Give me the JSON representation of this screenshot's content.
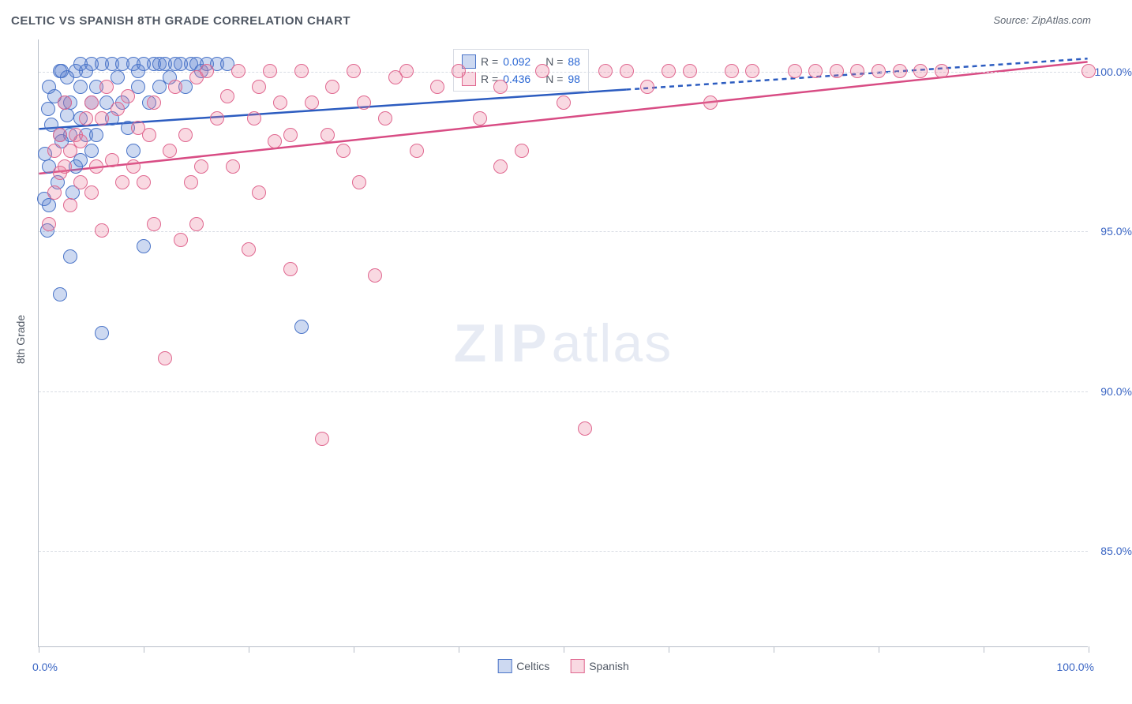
{
  "title": "CELTIC VS SPANISH 8TH GRADE CORRELATION CHART",
  "source": "Source: ZipAtlas.com",
  "yaxis_title": "8th Grade",
  "watermark_bold": "ZIP",
  "watermark_light": "atlas",
  "chart": {
    "type": "scatter",
    "x_domain": [
      0,
      100
    ],
    "y_domain": [
      82,
      101
    ],
    "x_min_label": "0.0%",
    "x_max_label": "100.0%",
    "y_ticks": [
      85,
      90,
      95,
      100
    ],
    "y_tick_labels": [
      "85.0%",
      "90.0%",
      "95.0%",
      "100.0%"
    ],
    "x_ticks": [
      0,
      10,
      20,
      30,
      40,
      50,
      60,
      70,
      80,
      90,
      100
    ],
    "grid_color": "#d8dce4",
    "axis_color": "#b8bec8",
    "marker_radius": 9,
    "marker_border_width": 1.5,
    "series": [
      {
        "name": "Celtics",
        "fill": "rgba(90,130,210,0.30)",
        "stroke": "#4a74c8",
        "R": "0.092",
        "N": "88",
        "trend": {
          "y_at_x0": 98.2,
          "y_at_x100": 100.4,
          "color": "#2c5cc0",
          "width": 2.5,
          "dash_after_x": 56
        },
        "points": [
          [
            0.5,
            96.0
          ],
          [
            0.8,
            95.0
          ],
          [
            1.0,
            97.0
          ],
          [
            1.0,
            99.5
          ],
          [
            2.0,
            98.0
          ],
          [
            2.0,
            100.0
          ],
          [
            2.0,
            93.0
          ],
          [
            2.5,
            99.0
          ],
          [
            3.0,
            98.0
          ],
          [
            3.0,
            94.2
          ],
          [
            3.0,
            99.0
          ],
          [
            3.5,
            97.0
          ],
          [
            3.5,
            100.0
          ],
          [
            4.0,
            99.5
          ],
          [
            4.0,
            98.5
          ],
          [
            4.0,
            100.2
          ],
          [
            4.0,
            97.2
          ],
          [
            4.5,
            100.0
          ],
          [
            4.5,
            98.0
          ],
          [
            5.0,
            99.0
          ],
          [
            5.0,
            100.2
          ],
          [
            5.0,
            97.5
          ],
          [
            5.5,
            99.5
          ],
          [
            5.5,
            98.0
          ],
          [
            6.0,
            100.2
          ],
          [
            6.0,
            91.8
          ],
          [
            6.5,
            99.0
          ],
          [
            7.0,
            100.2
          ],
          [
            7.0,
            98.5
          ],
          [
            7.5,
            99.8
          ],
          [
            8.0,
            100.2
          ],
          [
            8.0,
            99.0
          ],
          [
            8.5,
            98.2
          ],
          [
            9.0,
            100.2
          ],
          [
            9.0,
            97.5
          ],
          [
            9.5,
            99.5
          ],
          [
            9.5,
            100.0
          ],
          [
            10.0,
            100.2
          ],
          [
            10.0,
            94.5
          ],
          [
            10.5,
            99.0
          ],
          [
            11.0,
            100.2
          ],
          [
            11.5,
            99.5
          ],
          [
            11.5,
            100.2
          ],
          [
            12.0,
            100.2
          ],
          [
            12.5,
            99.8
          ],
          [
            13.0,
            100.2
          ],
          [
            13.5,
            100.2
          ],
          [
            14.0,
            99.5
          ],
          [
            14.5,
            100.2
          ],
          [
            15.0,
            100.2
          ],
          [
            15.5,
            100.0
          ],
          [
            16.0,
            100.2
          ],
          [
            17.0,
            100.2
          ],
          [
            18.0,
            100.2
          ],
          [
            25.0,
            92.0
          ],
          [
            1.2,
            98.3
          ],
          [
            1.5,
            99.2
          ],
          [
            1.8,
            96.5
          ],
          [
            2.2,
            100.0
          ],
          [
            2.2,
            97.8
          ],
          [
            2.7,
            98.6
          ],
          [
            2.7,
            99.8
          ],
          [
            3.2,
            96.2
          ],
          [
            1.0,
            95.8
          ],
          [
            0.6,
            97.4
          ],
          [
            0.9,
            98.8
          ]
        ]
      },
      {
        "name": "Spanish",
        "fill": "rgba(232,120,150,0.28)",
        "stroke": "#e06890",
        "R": "0.436",
        "N": "98",
        "trend": {
          "y_at_x0": 96.8,
          "y_at_x100": 100.3,
          "color": "#d84c84",
          "width": 2.5,
          "dash_after_x": 100
        },
        "points": [
          [
            1.0,
            95.2
          ],
          [
            1.5,
            97.5
          ],
          [
            1.5,
            96.2
          ],
          [
            2.0,
            98.0
          ],
          [
            2.0,
            96.8
          ],
          [
            2.5,
            97.0
          ],
          [
            2.5,
            99.0
          ],
          [
            3.0,
            97.5
          ],
          [
            3.0,
            95.8
          ],
          [
            3.5,
            98.0
          ],
          [
            4.0,
            97.8
          ],
          [
            4.0,
            96.5
          ],
          [
            4.5,
            98.5
          ],
          [
            5.0,
            96.2
          ],
          [
            5.0,
            99.0
          ],
          [
            5.5,
            97.0
          ],
          [
            6.0,
            98.5
          ],
          [
            6.0,
            95.0
          ],
          [
            6.5,
            99.5
          ],
          [
            7.0,
            97.2
          ],
          [
            7.5,
            98.8
          ],
          [
            8.0,
            96.5
          ],
          [
            8.5,
            99.2
          ],
          [
            9.0,
            97.0
          ],
          [
            9.5,
            98.2
          ],
          [
            10.0,
            96.5
          ],
          [
            10.5,
            98.0
          ],
          [
            11.0,
            99.0
          ],
          [
            11.0,
            95.2
          ],
          [
            12.0,
            91.0
          ],
          [
            12.5,
            97.5
          ],
          [
            13.0,
            99.5
          ],
          [
            13.5,
            94.7
          ],
          [
            14.0,
            98.0
          ],
          [
            14.5,
            96.5
          ],
          [
            15.0,
            99.8
          ],
          [
            15.0,
            95.2
          ],
          [
            15.5,
            97.0
          ],
          [
            16.0,
            100.0
          ],
          [
            17.0,
            98.5
          ],
          [
            18.0,
            99.2
          ],
          [
            18.5,
            97.0
          ],
          [
            19.0,
            100.0
          ],
          [
            20.0,
            94.4
          ],
          [
            20.5,
            98.5
          ],
          [
            21.0,
            96.2
          ],
          [
            21.0,
            99.5
          ],
          [
            22.0,
            100.0
          ],
          [
            22.5,
            97.8
          ],
          [
            23.0,
            99.0
          ],
          [
            24.0,
            98.0
          ],
          [
            24.0,
            93.8
          ],
          [
            25.0,
            100.0
          ],
          [
            26.0,
            99.0
          ],
          [
            27.0,
            88.5
          ],
          [
            27.5,
            98.0
          ],
          [
            28.0,
            99.5
          ],
          [
            29.0,
            97.5
          ],
          [
            30.0,
            100.0
          ],
          [
            30.5,
            96.5
          ],
          [
            31.0,
            99.0
          ],
          [
            32.0,
            93.6
          ],
          [
            33.0,
            98.5
          ],
          [
            34.0,
            99.8
          ],
          [
            35.0,
            100.0
          ],
          [
            36.0,
            97.5
          ],
          [
            38.0,
            99.5
          ],
          [
            40.0,
            100.0
          ],
          [
            42.0,
            98.5
          ],
          [
            44.0,
            99.5
          ],
          [
            44.0,
            97.0
          ],
          [
            46.0,
            97.5
          ],
          [
            48.0,
            100.0
          ],
          [
            50.0,
            99.0
          ],
          [
            52.0,
            88.8
          ],
          [
            54.0,
            100.0
          ],
          [
            56.0,
            100.0
          ],
          [
            58.0,
            99.5
          ],
          [
            60.0,
            100.0
          ],
          [
            62.0,
            100.0
          ],
          [
            64.0,
            99.0
          ],
          [
            66.0,
            100.0
          ],
          [
            68.0,
            100.0
          ],
          [
            72.0,
            100.0
          ],
          [
            74.0,
            100.0
          ],
          [
            76.0,
            100.0
          ],
          [
            78.0,
            100.0
          ],
          [
            80.0,
            100.0
          ],
          [
            82.0,
            100.0
          ],
          [
            84.0,
            100.0
          ],
          [
            86.0,
            100.0
          ],
          [
            100.0,
            100.0
          ]
        ]
      }
    ],
    "legend_series_labels": [
      "Celtics",
      "Spanish"
    ],
    "legend_stats_prefix": "R =",
    "legend_stats_mid": "N =",
    "legend_value_color": "#2c68d4",
    "legend_text_color": "#505864"
  }
}
